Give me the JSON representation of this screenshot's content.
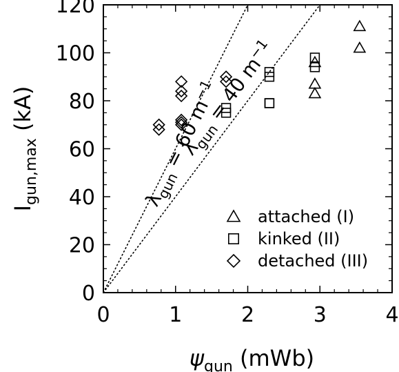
{
  "chart_data": {
    "type": "scatter",
    "xlabel": {
      "symbol": "ψ",
      "subscript": "gun",
      "unit": "(mWb)"
    },
    "ylabel": {
      "symbol": "I",
      "subscript": "gun,max",
      "unit": "(kA)"
    },
    "xlim": [
      0,
      4
    ],
    "ylim": [
      0,
      120
    ],
    "xticks": [
      "0",
      "1",
      "2",
      "3",
      "4"
    ],
    "yticks": [
      "0",
      "20",
      "40",
      "60",
      "80",
      "100",
      "120"
    ],
    "x_tick_values": [
      0,
      1,
      2,
      3,
      4
    ],
    "y_tick_values": [
      0,
      20,
      40,
      60,
      80,
      100,
      120
    ],
    "grid": false,
    "legend_position": "bottom-right",
    "reference_lines": [
      {
        "slope_kA_per_mWb": 60,
        "label": {
          "symbol": "λ",
          "subscript": "gun",
          "text": " = 60 m",
          "superscript": "−1"
        }
      },
      {
        "slope_kA_per_mWb": 40,
        "label": {
          "symbol": "λ",
          "subscript": "gun",
          "text": " = 40 m",
          "superscript": "−1"
        }
      }
    ],
    "series": [
      {
        "name": "attached (I)",
        "marker": "triangle",
        "points": [
          [
            3.55,
            111
          ],
          [
            3.55,
            102
          ],
          [
            2.93,
            87
          ],
          [
            2.93,
            83
          ],
          [
            2.93,
            96
          ]
        ]
      },
      {
        "name": "kinked (II)",
        "marker": "square",
        "points": [
          [
            1.7,
            77
          ],
          [
            1.7,
            75
          ],
          [
            2.3,
            92
          ],
          [
            2.3,
            90
          ],
          [
            2.3,
            79
          ],
          [
            2.3,
            79
          ],
          [
            2.93,
            98
          ],
          [
            2.93,
            94
          ]
        ]
      },
      {
        "name": "detached (III)",
        "marker": "diamond",
        "points": [
          [
            0.77,
            70
          ],
          [
            0.77,
            68
          ],
          [
            1.08,
            88
          ],
          [
            1.08,
            84
          ],
          [
            1.08,
            82
          ],
          [
            1.08,
            72
          ],
          [
            1.08,
            71
          ],
          [
            1.08,
            70
          ],
          [
            1.7,
            90
          ],
          [
            1.7,
            88
          ]
        ]
      }
    ]
  }
}
